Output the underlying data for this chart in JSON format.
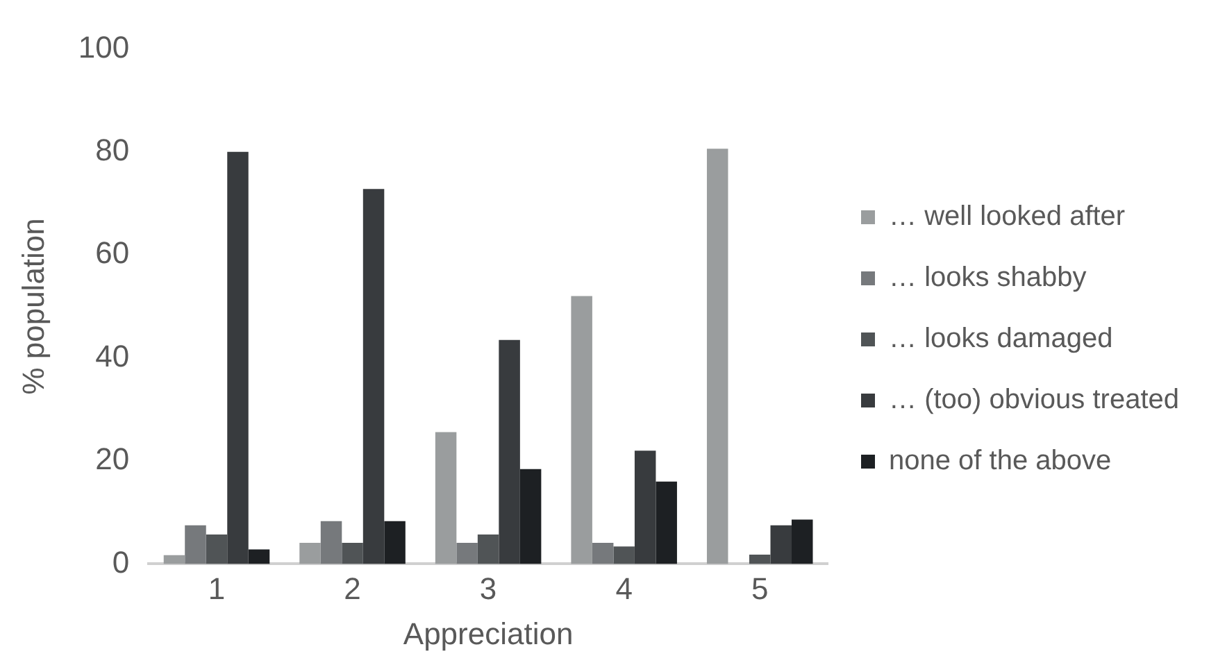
{
  "chart_data": {
    "type": "bar",
    "xlabel": "Appreciation",
    "ylabel": "% population",
    "categories": [
      "1",
      "2",
      "3",
      "4",
      "5"
    ],
    "series": [
      {
        "name": "… well looked after",
        "color": "#9a9d9e",
        "values": [
          1.7,
          4.1,
          25.6,
          52,
          80.6
        ]
      },
      {
        "name": "… looks shabby",
        "color": "#76797c",
        "values": [
          7.5,
          8.3,
          4.1,
          4.1,
          0
        ]
      },
      {
        "name": "… looks damaged",
        "color": "#505456",
        "values": [
          5.7,
          4.1,
          5.7,
          3.4,
          1.8
        ]
      },
      {
        "name": "… (too) obvious treated",
        "color": "#383b3e",
        "values": [
          80,
          72.8,
          43.5,
          22,
          7.5
        ]
      },
      {
        "name": "none of the above",
        "color": "#1d2023",
        "values": [
          2.8,
          8.3,
          18.4,
          16,
          8.6
        ]
      }
    ],
    "ylim": [
      0,
      100
    ],
    "yticks": [
      0,
      20,
      40,
      60,
      80,
      100
    ],
    "grid": false,
    "legend": "right"
  }
}
